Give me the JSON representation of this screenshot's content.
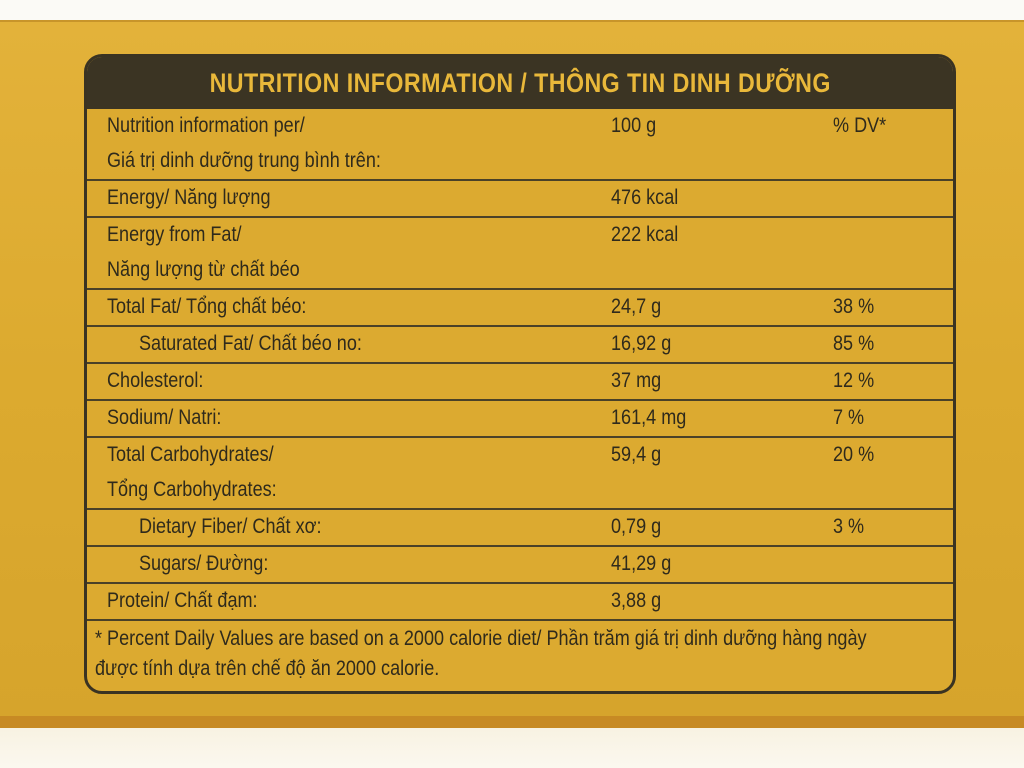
{
  "header": {
    "title": "NUTRITION INFORMATION / THÔNG TIN DINH DƯỠNG"
  },
  "rows": [
    {
      "label": [
        "Nutrition information per/",
        "Giá trị dinh dưỡng trung bình trên:"
      ],
      "amount": "100 g",
      "dv": "% DV*",
      "indent": false
    },
    {
      "label": [
        "Energy/ Năng lượng"
      ],
      "amount": "476 kcal",
      "dv": "",
      "indent": false
    },
    {
      "label": [
        "Energy from Fat/",
        "Năng lượng từ chất béo"
      ],
      "amount": "222 kcal",
      "dv": "",
      "indent": false
    },
    {
      "label": [
        "Total Fat/ Tổng chất béo:"
      ],
      "amount": "24,7 g",
      "dv": "38 %",
      "indent": false
    },
    {
      "label": [
        "Saturated Fat/ Chất béo no:"
      ],
      "amount": "16,92 g",
      "dv": "85 %",
      "indent": true
    },
    {
      "label": [
        "Cholesterol:"
      ],
      "amount": "37 mg",
      "dv": "12 %",
      "indent": false
    },
    {
      "label": [
        "Sodium/ Natri:"
      ],
      "amount": "161,4 mg",
      "dv": "7 %",
      "indent": false
    },
    {
      "label": [
        "Total Carbohydrates/",
        "Tổng Carbohydrates:"
      ],
      "amount": "59,4 g",
      "dv": "20 %",
      "indent": false
    },
    {
      "label": [
        "Dietary Fiber/ Chất xơ:"
      ],
      "amount": "0,79 g",
      "dv": "3 %",
      "indent": true
    },
    {
      "label": [
        "Sugars/ Đường:"
      ],
      "amount": "41,29 g",
      "dv": "",
      "indent": true
    },
    {
      "label": [
        "Protein/ Chất đạm:"
      ],
      "amount": "3,88 g",
      "dv": "",
      "indent": false
    }
  ],
  "footnote": [
    "* Percent Daily Values are based on a 2000 calorie diet/ Phần trăm giá trị dinh dưỡng hàng ngày",
    "được tính dựa trên chế độ ăn 2000 calorie."
  ],
  "colors": {
    "box": "#dcaa30",
    "header_bg": "#3b3423",
    "header_text": "#e9b83a",
    "text": "#2f2a1c"
  }
}
